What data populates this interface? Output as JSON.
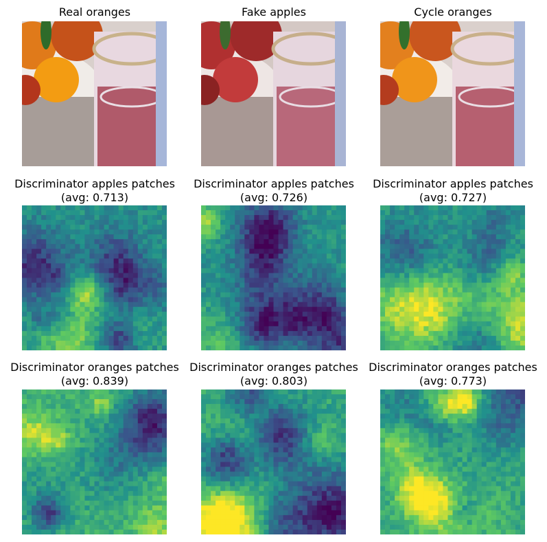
{
  "figure": {
    "rows": [
      {
        "panels": [
          {
            "title": "Real oranges",
            "subtitle": "",
            "kind": "photo-oranges"
          },
          {
            "title": "Fake apples",
            "subtitle": "",
            "kind": "photo-apples"
          },
          {
            "title": "Cycle oranges",
            "subtitle": "",
            "kind": "photo-cycle"
          }
        ]
      },
      {
        "panels": [
          {
            "title": "Discriminator apples patches",
            "subtitle": "(avg: 0.713)",
            "avg": 0.713,
            "kind": "heatmap"
          },
          {
            "title": "Discriminator apples patches",
            "subtitle": "(avg: 0.726)",
            "avg": 0.726,
            "kind": "heatmap"
          },
          {
            "title": "Discriminator apples patches",
            "subtitle": "(avg: 0.727)",
            "avg": 0.727,
            "kind": "heatmap"
          }
        ]
      },
      {
        "panels": [
          {
            "title": "Discriminator oranges patches",
            "subtitle": "(avg: 0.839)",
            "avg": 0.839,
            "kind": "heatmap"
          },
          {
            "title": "Discriminator oranges patches",
            "subtitle": "(avg: 0.803)",
            "avg": 0.803,
            "kind": "heatmap"
          },
          {
            "title": "Discriminator oranges patches",
            "subtitle": "(avg: 0.773)",
            "avg": 0.773,
            "kind": "heatmap"
          }
        ]
      }
    ],
    "colormap": [
      "#440154",
      "#3b528b",
      "#21918c",
      "#5ec962",
      "#fde725"
    ]
  }
}
